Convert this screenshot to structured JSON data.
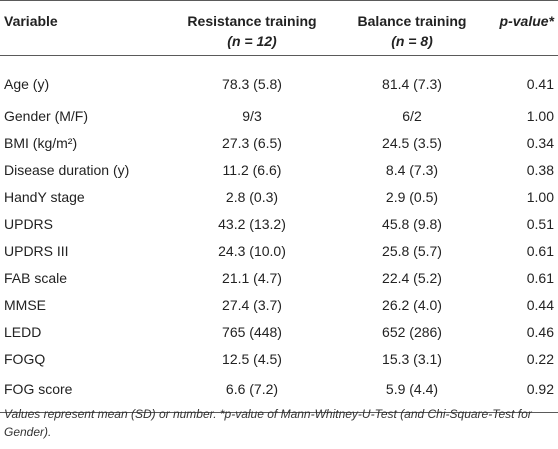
{
  "table": {
    "headers": {
      "variable": "Variable",
      "resistance": "Resistance training",
      "resistance_n": "(n = 12)",
      "balance": "Balance training",
      "balance_n": "(n = 8)",
      "pvalue": "p-value*"
    },
    "rows": [
      {
        "variable": "Age (y)",
        "resistance": "78.3 (5.8)",
        "balance": "81.4 (7.3)",
        "p": "0.41"
      },
      {
        "variable": "Gender (M/F)",
        "resistance": "9/3",
        "balance": "6/2",
        "p": "1.00"
      },
      {
        "variable": "BMI (kg/m²)",
        "resistance": "27.3 (6.5)",
        "balance": "24.5 (3.5)",
        "p": "0.34"
      },
      {
        "variable": "Disease duration (y)",
        "resistance": "11.2 (6.6)",
        "balance": "8.4 (7.3)",
        "p": "0.38"
      },
      {
        "variable": "HandY stage",
        "resistance": "2.8 (0.3)",
        "balance": "2.9 (0.5)",
        "p": "1.00"
      },
      {
        "variable": "UPDRS",
        "resistance": "43.2 (13.2)",
        "balance": "45.8 (9.8)",
        "p": "0.51"
      },
      {
        "variable": "UPDRS III",
        "resistance": "24.3 (10.0)",
        "balance": "25.8 (5.7)",
        "p": "0.61"
      },
      {
        "variable": "FAB scale",
        "resistance": "21.1 (4.7)",
        "balance": "22.4 (5.2)",
        "p": "0.61"
      },
      {
        "variable": "MMSE",
        "resistance": "27.4 (3.7)",
        "balance": "26.2 (4.0)",
        "p": "0.44"
      },
      {
        "variable": "LEDD",
        "resistance": "765 (448)",
        "balance": "652 (286)",
        "p": "0.46"
      },
      {
        "variable": "FOGQ",
        "resistance": "12.5 (4.5)",
        "balance": "15.3 (3.1)",
        "p": "0.22"
      },
      {
        "variable": "FOG score",
        "resistance": "6.6 (7.2)",
        "balance": "5.9 (4.4)",
        "p": "0.92"
      }
    ]
  },
  "footnote": "Values represent mean (SD) or number. *p-value of Mann-Whitney-U-Test (and Chi-Square-Test for Gender)."
}
